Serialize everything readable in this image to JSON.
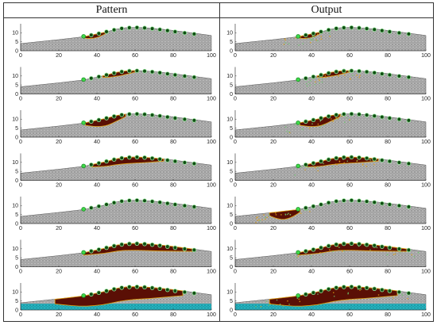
{
  "columns": [
    "Pattern",
    "Output"
  ],
  "colors": {
    "mesh": "#b8b8b8",
    "mesh_line": "#7a7a7a",
    "base_layer": "#27b8c4",
    "damage": "#5a0f05",
    "damage_edge": "#e0a010",
    "marker_dark": "#0f4d12",
    "marker_light": "#3fd94a",
    "axis": "#222222"
  },
  "chart_data": {
    "type": "panel-grid",
    "rows": 7,
    "cols": 2,
    "xlim": [
      0,
      100
    ],
    "ylim": [
      0,
      15
    ],
    "xticks": [
      "0",
      "20",
      "40",
      "60",
      "80",
      "100"
    ],
    "yticks": [
      "0",
      "5",
      "10"
    ],
    "slope_profile": {
      "x": [
        0,
        20,
        33,
        45,
        50,
        55,
        60,
        65,
        70,
        75,
        80,
        85,
        90,
        95,
        100
      ],
      "y": [
        4,
        6.2,
        7.8,
        10.5,
        12,
        12.8,
        13,
        12.8,
        12.4,
        11.9,
        11.3,
        10.6,
        9.9,
        9.2,
        8.5
      ]
    },
    "sensor_points": {
      "x": [
        33,
        37,
        41,
        45,
        49,
        53,
        57,
        61,
        65,
        69,
        73,
        77,
        81,
        86,
        91
      ],
      "y": [
        8.0,
        8.7,
        9.6,
        10.6,
        11.6,
        12.4,
        12.8,
        12.9,
        12.7,
        12.3,
        11.8,
        11.2,
        10.6,
        9.9,
        9.3
      ]
    },
    "panels": [
      {
        "row": 1,
        "col": "Pattern",
        "damage": {
          "x0": 33,
          "x1": 45,
          "depth": 2.0
        },
        "base_layer": false,
        "scatter": false
      },
      {
        "row": 1,
        "col": "Output",
        "damage": {
          "x0": 33,
          "x1": 45,
          "depth": 2.0
        },
        "base_layer": false,
        "scatter": true
      },
      {
        "row": 2,
        "col": "Pattern",
        "damage": {
          "x0": 43,
          "x1": 60,
          "depth": 2.2
        },
        "base_layer": false,
        "scatter": false
      },
      {
        "row": 2,
        "col": "Output",
        "damage": {
          "x0": 43,
          "x1": 60,
          "depth": 2.2
        },
        "base_layer": false,
        "scatter": true
      },
      {
        "row": 3,
        "col": "Pattern",
        "damage": {
          "x0": 34,
          "x1": 55,
          "depth": 4.0
        },
        "base_layer": false,
        "scatter": false
      },
      {
        "row": 3,
        "col": "Output",
        "damage": {
          "x0": 34,
          "x1": 55,
          "depth": 4.0
        },
        "base_layer": false,
        "scatter": true
      },
      {
        "row": 4,
        "col": "Pattern",
        "damage": {
          "x0": 37,
          "x1": 75,
          "depth": 3.5
        },
        "base_layer": false,
        "scatter": false
      },
      {
        "row": 4,
        "col": "Output",
        "damage": {
          "x0": 37,
          "x1": 75,
          "depth": 3.5
        },
        "base_layer": false,
        "scatter": true
      },
      {
        "row": 5,
        "col": "Pattern",
        "damage": null,
        "base_layer": false,
        "scatter": false
      },
      {
        "row": 5,
        "col": "Output",
        "damage": {
          "x0": 18,
          "x1": 34,
          "depth": 4.5
        },
        "base_layer": false,
        "scatter": true
      },
      {
        "row": 6,
        "col": "Pattern",
        "damage": {
          "x0": 33,
          "x1": 90,
          "depth": 3.8
        },
        "base_layer": false,
        "scatter": false
      },
      {
        "row": 6,
        "col": "Output",
        "damage": {
          "x0": 33,
          "x1": 90,
          "depth": 3.8
        },
        "base_layer": false,
        "scatter": true
      },
      {
        "row": 7,
        "col": "Pattern",
        "damage": {
          "x0": 18,
          "x1": 85,
          "depth": 7.5
        },
        "base_layer": true,
        "scatter": false
      },
      {
        "row": 7,
        "col": "Output",
        "damage": {
          "x0": 18,
          "x1": 85,
          "depth": 7.5
        },
        "base_layer": true,
        "scatter": true
      }
    ]
  }
}
